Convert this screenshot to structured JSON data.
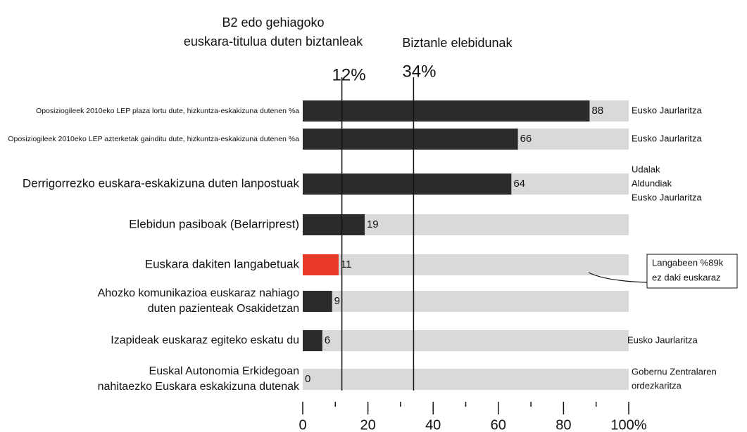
{
  "chart_data": {
    "type": "bar",
    "orientation": "horizontal",
    "categories": [
      [
        "Oposiziogileek 2010eko LEP plaza lortu dute, hizkuntza-eskakizuna dutenen %a"
      ],
      [
        "Oposiziogileek 2010eko LEP azterketak gainditu dute, hizkuntza-eskakizuna dutenen %a"
      ],
      [
        "Derrigorrezko euskara-eskakizuna duten lanpostuak"
      ],
      [
        "Elebidun pasiboak (Belarriprest)"
      ],
      [
        "Euskara dakiten langabetuak"
      ],
      [
        "Ahozko komunikazioa euskaraz nahiago",
        "duten pazienteak Osakidetzan"
      ],
      [
        "Izapideak euskaraz egiteko eskatu du"
      ],
      [
        "Euskal Autonomia Erkidegoan",
        "nahitaezko Euskara eskakizuna dutenak"
      ]
    ],
    "values": [
      88,
      66,
      64,
      19,
      11,
      9,
      6,
      0
    ],
    "colors": [
      "#2b2b2b",
      "#2b2b2b",
      "#2b2b2b",
      "#2b2b2b",
      "#e8392a",
      "#2b2b2b",
      "#2b2b2b",
      "#2b2b2b"
    ],
    "background_color": "#d9d9d9",
    "sources": [
      [
        "Eusko Jaurlaritza"
      ],
      [
        "Eusko Jaurlaritza"
      ],
      [
        "Udalak",
        "Aldundiak",
        "Eusko Jaurlaritza"
      ],
      null,
      null,
      null,
      [
        "Eusko Jaurlaritza"
      ],
      [
        "Gobernu Zentralaren",
        "ordezkaritza"
      ]
    ],
    "xlim": [
      0,
      100
    ],
    "xticks": [
      0,
      20,
      40,
      60,
      80,
      {
        "value": 100,
        "label": "100%"
      }
    ],
    "minor_xticks": [
      10,
      30,
      50,
      70,
      90
    ],
    "reference_lines": [
      {
        "value": 12,
        "label": "12%",
        "title": [
          "B2 edo gehiagoko",
          "euskara-titulua duten biztanleak"
        ]
      },
      {
        "value": 34,
        "label": "34%",
        "title": [
          "Biztanle elebidunak"
        ]
      }
    ],
    "annotation": {
      "row": 4,
      "text": [
        "Langabeen %89k",
        "ez daki euskaraz"
      ]
    }
  }
}
